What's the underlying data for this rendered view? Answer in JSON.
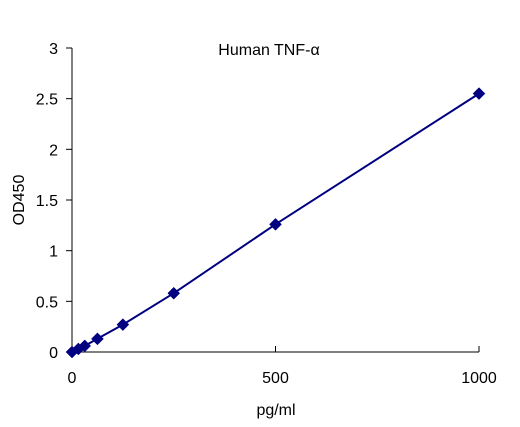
{
  "chart_data": {
    "type": "line",
    "title": "Human TNF-α",
    "xlabel": "pg/ml",
    "ylabel": "OD450",
    "xlim": [
      0,
      1000
    ],
    "ylim": [
      0,
      3
    ],
    "x_ticks": [
      "0",
      "500",
      "1000"
    ],
    "y_ticks": [
      "0",
      "0.5",
      "1",
      "1.5",
      "2",
      "2.5",
      "3"
    ],
    "grid": false,
    "legend": "none",
    "series": [
      {
        "x": [
          0,
          15.6,
          31.25,
          62.5,
          125,
          250,
          500,
          1000
        ],
        "y": [
          0.0,
          0.03,
          0.06,
          0.13,
          0.27,
          0.58,
          1.26,
          2.55
        ],
        "color": "#000080",
        "marker": "diamond"
      }
    ]
  }
}
